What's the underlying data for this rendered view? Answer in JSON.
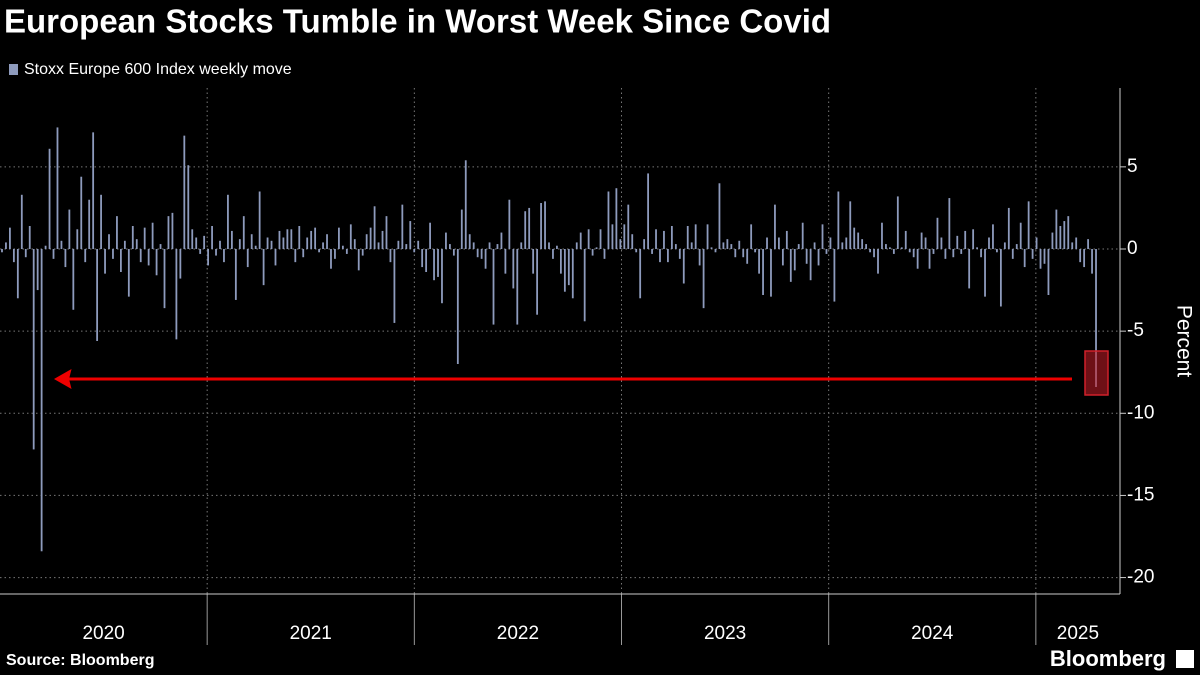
{
  "chart_data": {
    "type": "bar",
    "title": "European Stocks Tumble in Worst Week Since Covid",
    "series": [
      {
        "name": "Stoxx Europe 600 Index weekly move",
        "color": "#8e9bbd",
        "values": [
          -0.2,
          0.4,
          1.3,
          -0.8,
          -3.0,
          3.3,
          -0.5,
          1.4,
          -12.2,
          -2.5,
          -18.4,
          0.2,
          6.1,
          -0.6,
          7.4,
          0.5,
          -1.1,
          2.4,
          -3.7,
          1.2,
          4.4,
          -0.8,
          3.0,
          7.1,
          -5.6,
          3.3,
          -1.5,
          0.9,
          -0.6,
          2.0,
          -1.4,
          0.5,
          -2.9,
          1.4,
          0.6,
          -0.8,
          1.3,
          -1.0,
          1.6,
          -1.6,
          0.3,
          -3.6,
          2.0,
          2.2,
          -5.5,
          -1.8,
          6.9,
          5.1,
          1.2,
          0.7,
          -0.3,
          0.8,
          -1.0,
          1.4,
          -0.4,
          0.5,
          -0.8,
          3.3,
          1.1,
          -3.1,
          0.6,
          2.0,
          -1.1,
          0.9,
          0.2,
          3.5,
          -2.2,
          0.7,
          0.5,
          -1.0,
          1.1,
          0.7,
          1.2,
          1.2,
          -0.8,
          1.4,
          -0.5,
          0.7,
          1.1,
          1.3,
          -0.2,
          0.4,
          0.9,
          -1.2,
          -0.6,
          1.3,
          0.2,
          -0.3,
          1.5,
          0.6,
          -1.3,
          -0.4,
          0.9,
          1.3,
          2.6,
          0.4,
          1.1,
          2.0,
          -0.8,
          -4.5,
          0.5,
          2.7,
          0.3,
          1.7,
          -0.2,
          0.5,
          -1.1,
          -1.4,
          1.6,
          -1.9,
          -1.7,
          -3.3,
          1.0,
          0.3,
          -0.4,
          -7.0,
          2.4,
          5.4,
          0.9,
          0.4,
          -0.5,
          -0.6,
          -1.2,
          0.4,
          -4.6,
          0.3,
          1.0,
          -1.5,
          3.0,
          -2.4,
          -4.6,
          0.4,
          2.3,
          2.5,
          -1.5,
          -4.0,
          2.8,
          2.9,
          0.4,
          -0.6,
          0.2,
          -1.5,
          -2.6,
          -2.2,
          -3.0,
          0.4,
          1.0,
          -4.4,
          1.2,
          -0.4,
          0.1,
          1.2,
          -0.6,
          3.5,
          1.5,
          3.7,
          0.6,
          1.5,
          2.7,
          0.9,
          -0.2,
          -3.0,
          0.6,
          4.6,
          -0.3,
          1.2,
          -0.8,
          1.1,
          -0.8,
          1.4,
          0.3,
          -0.6,
          -2.1,
          1.4,
          0.4,
          1.5,
          -1.0,
          -3.6,
          1.5,
          0.1,
          -0.2,
          4.0,
          0.4,
          0.6,
          0.3,
          -0.5,
          0.5,
          -0.5,
          -0.9,
          1.5,
          -0.2,
          -1.5,
          -2.8,
          0.7,
          -2.9,
          2.7,
          0.7,
          -1.0,
          1.1,
          -2.0,
          -1.3,
          0.3,
          1.6,
          -0.9,
          -1.9,
          0.4,
          -1.0,
          1.5,
          -0.3,
          0.7,
          -3.2,
          3.5,
          0.4,
          0.7,
          2.9,
          1.3,
          1.0,
          0.6,
          0.3,
          -0.2,
          -0.5,
          -1.5,
          1.6,
          0.3,
          0.1,
          -0.3,
          3.2,
          0.1,
          1.1,
          -0.2,
          -0.5,
          -1.2,
          1.0,
          0.7,
          -1.2,
          -0.3,
          1.9,
          0.7,
          -0.6,
          3.1,
          -0.5,
          0.8,
          -0.3,
          1.1,
          -2.4,
          1.2,
          0.1,
          -0.5,
          -2.9,
          0.7,
          1.5,
          -0.2,
          -3.5,
          0.4,
          2.5,
          -0.6,
          0.3,
          1.6,
          -1.1,
          2.9,
          -0.6,
          0.7,
          -1.2,
          -0.9,
          -2.8,
          1.0,
          2.4,
          1.4,
          1.7,
          2.0,
          0.4,
          0.7,
          -0.8,
          -1.1,
          0.6,
          -1.5,
          -8.4
        ]
      }
    ],
    "xlim": [
      2020,
      2025.3
    ],
    "xticks": [
      {
        "value": 2020,
        "label": "2020"
      },
      {
        "value": 2021,
        "label": "2021"
      },
      {
        "value": 2022,
        "label": "2022"
      },
      {
        "value": 2023,
        "label": "2023"
      },
      {
        "value": 2024,
        "label": "2024"
      },
      {
        "value": 2025,
        "label": "2025"
      }
    ],
    "ylim": [
      -21,
      9.8
    ],
    "yticks": [
      -20,
      -15,
      -10,
      -5,
      0,
      5
    ],
    "ylabel": "Percent",
    "grid": true,
    "source": "Source: Bloomberg",
    "brand": "Bloomberg"
  }
}
